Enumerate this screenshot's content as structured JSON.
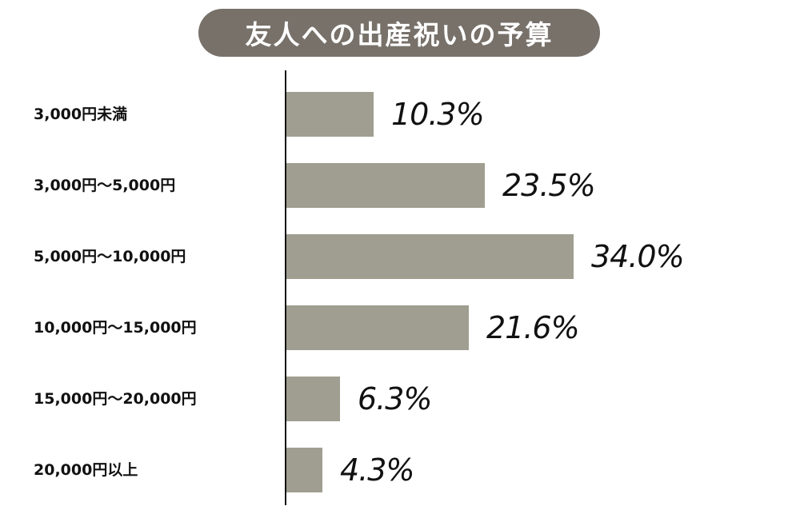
{
  "title": "友人への出産祝いの予算",
  "chart_data": {
    "type": "bar",
    "orientation": "horizontal",
    "title": "友人への出産祝いの予算",
    "xlabel": "",
    "ylabel": "",
    "categories": [
      "3,000円未満",
      "3,000円〜5,000円",
      "5,000円〜10,000円",
      "10,000円〜15,000円",
      "15,000円〜20,000円",
      "20,000円以上"
    ],
    "values": [
      10.3,
      23.5,
      34.0,
      21.6,
      6.3,
      4.3
    ],
    "value_labels": [
      "10.3%",
      "23.5%",
      "34.0%",
      "21.6%",
      "6.3%",
      "4.3%"
    ],
    "unit": "%",
    "grid": false,
    "legend": null,
    "bar_color": "#a09e90"
  },
  "colors": {
    "title_bg": "#77716a",
    "title_text": "#ffffff",
    "bar": "#a09e90",
    "axis": "#111111"
  }
}
